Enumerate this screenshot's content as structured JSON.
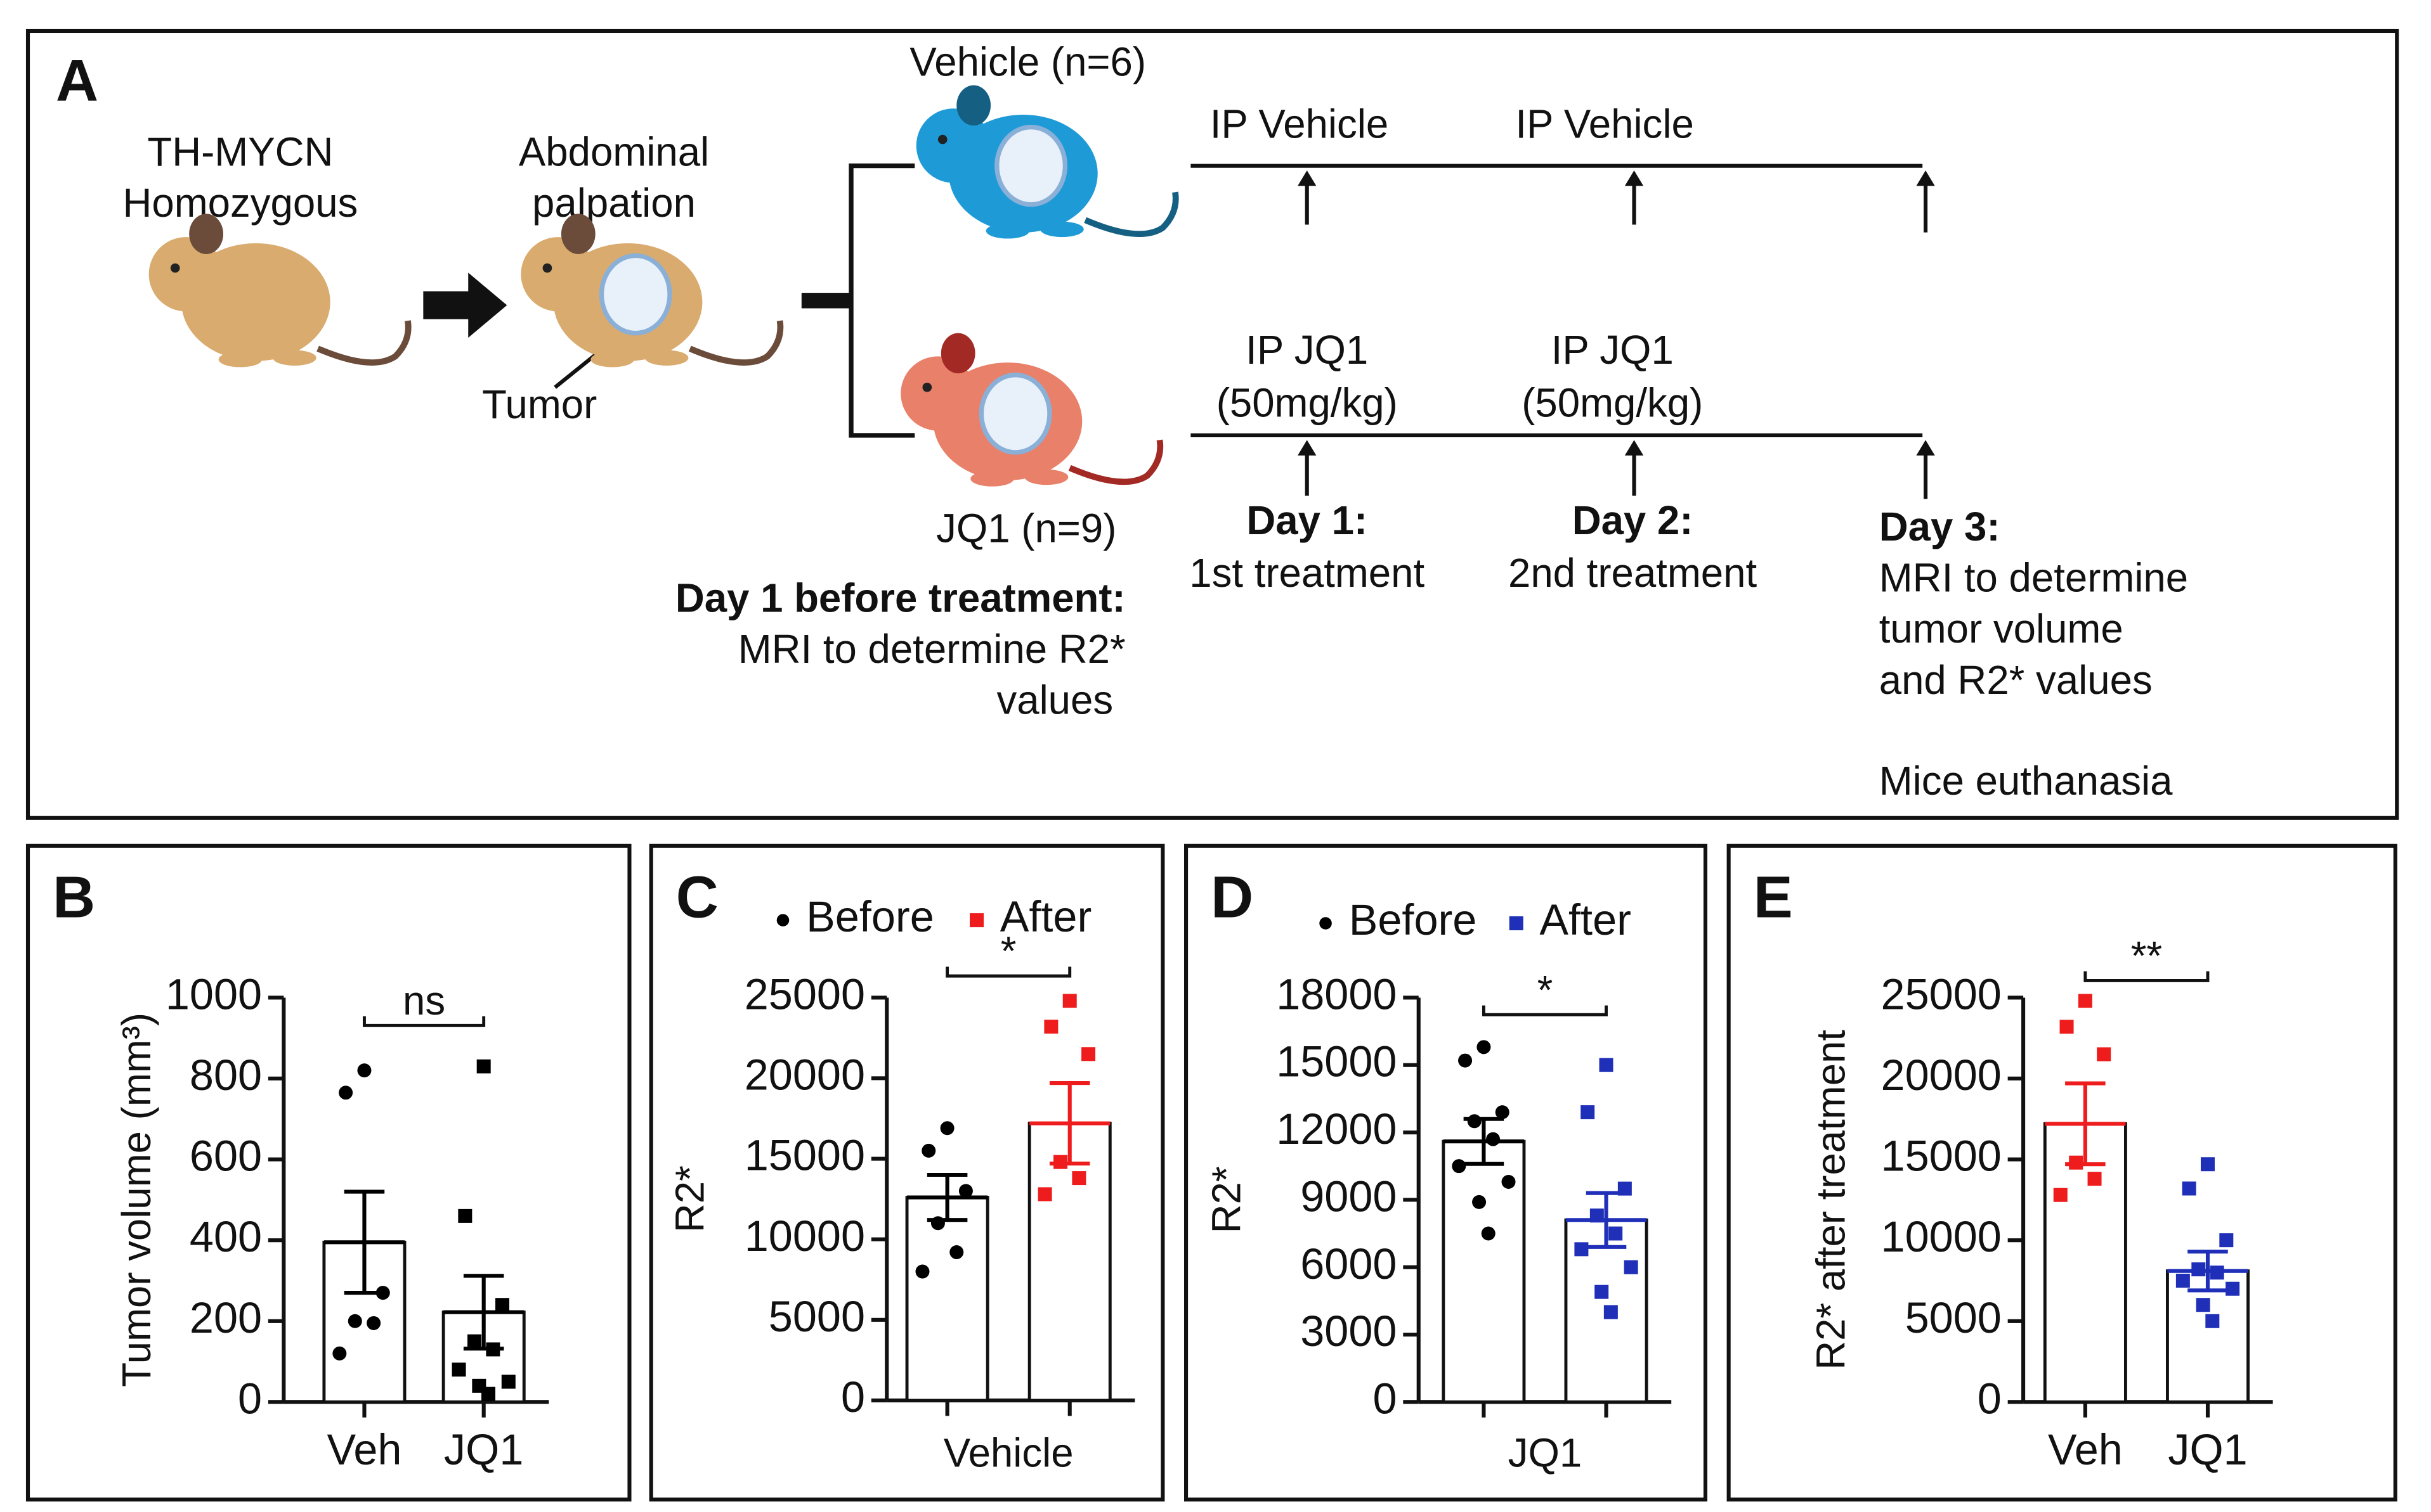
{
  "panel_a": {
    "label": "A",
    "strain": [
      "TH-MYCN",
      "Homozygous"
    ],
    "palpation": [
      "Abdominal",
      "palpation"
    ],
    "tumor": "Tumor",
    "vehicle_group": "Vehicle (n=6)",
    "jq1_group": "JQ1 (n=9)",
    "vehicle_doses": [
      "IP Vehicle",
      "IP Vehicle"
    ],
    "jq1_doses": [
      [
        "IP JQ1",
        "(50mg/kg)"
      ],
      [
        "IP JQ1",
        "(50mg/kg)"
      ]
    ],
    "baseline": {
      "title": "Day 1 before treatment:",
      "lines": [
        "MRI to determine R2*",
        "values"
      ]
    },
    "day1": {
      "title": "Day 1:",
      "lines": [
        "1st treatment"
      ]
    },
    "day2": {
      "title": "Day 2:",
      "lines": [
        "2nd treatment"
      ]
    },
    "day3": {
      "title": "Day 3:",
      "lines": [
        "MRI to determine",
        "tumor volume",
        "and R2* values"
      ],
      "note": "Mice euthanasia"
    }
  },
  "chart_data": [
    {
      "type": "bar",
      "panel_label": "B",
      "ylabel": "Tumor volume (mm³)",
      "categories": [
        "Veh",
        "JQ1"
      ],
      "values": [
        395,
        222
      ],
      "errors": [
        125,
        90
      ],
      "points": [
        [
          820,
          765,
          270,
          200,
          195,
          120
        ],
        [
          830,
          460,
          240,
          150,
          130,
          80,
          50,
          40,
          20
        ]
      ],
      "colors": [
        "#000000",
        "#000000"
      ],
      "markers": [
        "circle",
        "square"
      ],
      "annotation": "ns",
      "ylim": [
        0,
        1000
      ],
      "yticks": [
        0,
        200,
        400,
        600,
        800,
        1000
      ]
    },
    {
      "type": "bar",
      "panel_label": "C",
      "ylabel": "R2*",
      "xlabel": "Vehicle",
      "categories": [
        null,
        null
      ],
      "legend": [
        "Before",
        "After"
      ],
      "values": [
        12600,
        17200
      ],
      "errors": [
        1400,
        2500
      ],
      "points": [
        [
          16900,
          15500,
          13000,
          11000,
          9200,
          8000
        ],
        [
          24800,
          23200,
          21500,
          14800,
          13800,
          12800
        ]
      ],
      "colors": [
        "#000000",
        "#ee1c1c"
      ],
      "markers": [
        "circle",
        "square"
      ],
      "annotation": "*",
      "ylim": [
        0,
        25000
      ],
      "yticks": [
        0,
        5000,
        10000,
        15000,
        20000,
        25000
      ]
    },
    {
      "type": "bar",
      "panel_label": "D",
      "ylabel": "R2*",
      "xlabel": "JQ1",
      "categories": [
        null,
        null
      ],
      "legend": [
        "Before",
        "After"
      ],
      "values": [
        11600,
        8100
      ],
      "errors": [
        1000,
        1200
      ],
      "points": [
        [
          15800,
          15200,
          12900,
          12500,
          11700,
          10500,
          9800,
          8900,
          7500
        ],
        [
          15000,
          12900,
          9500,
          8300,
          7500,
          6800,
          6000,
          4900,
          4000
        ]
      ],
      "colors": [
        "#000000",
        "#1f2fb8"
      ],
      "markers": [
        "circle",
        "square"
      ],
      "annotation": "*",
      "ylim": [
        0,
        18000
      ],
      "yticks": [
        0,
        3000,
        6000,
        9000,
        12000,
        15000,
        18000
      ]
    },
    {
      "type": "bar",
      "panel_label": "E",
      "ylabel": "R2* after treatment",
      "categories": [
        "Veh",
        "JQ1"
      ],
      "values": [
        17200,
        8100
      ],
      "errors": [
        2500,
        1200
      ],
      "points": [
        [
          24800,
          23200,
          21500,
          14800,
          13800,
          12800
        ],
        [
          14700,
          13200,
          10000,
          8200,
          8000,
          7500,
          7000,
          6000,
          5000
        ]
      ],
      "colors": [
        "#ee1c1c",
        "#1f2fb8"
      ],
      "markers": [
        "square",
        "square"
      ],
      "annotation": "**",
      "ylim": [
        0,
        25000
      ],
      "yticks": [
        0,
        5000,
        10000,
        15000,
        20000,
        25000
      ]
    }
  ]
}
